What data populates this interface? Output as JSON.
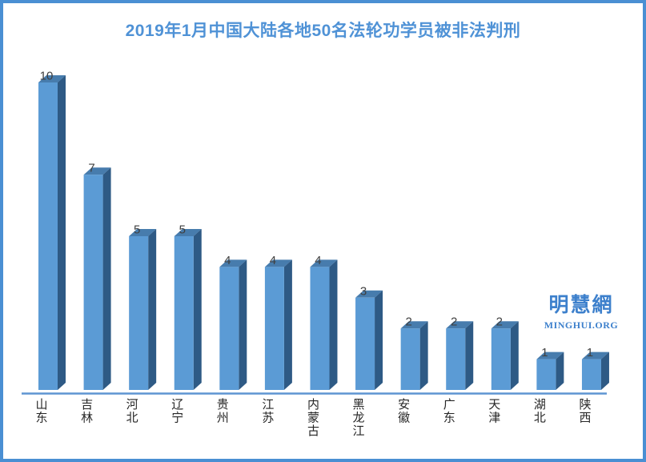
{
  "watermark": {
    "cn": "明慧網",
    "en": "MINGHUI.ORG"
  },
  "colors": {
    "background": "#ffffff",
    "border": "#4a8fd3",
    "title": "#4f92d6",
    "axis_line": "#5e95d2",
    "bar_front": "#5b9bd5",
    "bar_top": "#477cad",
    "bar_side": "#2e5a85",
    "value_label": "#404040",
    "category_label": "#262626",
    "watermark": "#3d80cc"
  },
  "chart_data": {
    "type": "bar",
    "style": "3d-column",
    "title": "2019年1月中国大陆各地50名法轮功学员被非法判刑",
    "categories": [
      "山东",
      "吉林",
      "河北",
      "辽宁",
      "贵州",
      "江苏",
      "内蒙古",
      "黑龙江",
      "安徽",
      "广东",
      "天津",
      "湖北",
      "陕西"
    ],
    "values": [
      10,
      7,
      5,
      5,
      4,
      4,
      4,
      3,
      2,
      2,
      2,
      1,
      1
    ],
    "xlabel": "",
    "ylabel": "",
    "ylim": [
      0,
      10
    ],
    "grid": false,
    "legend": false,
    "data_labels": true,
    "category_label_orientation": "vertical"
  }
}
